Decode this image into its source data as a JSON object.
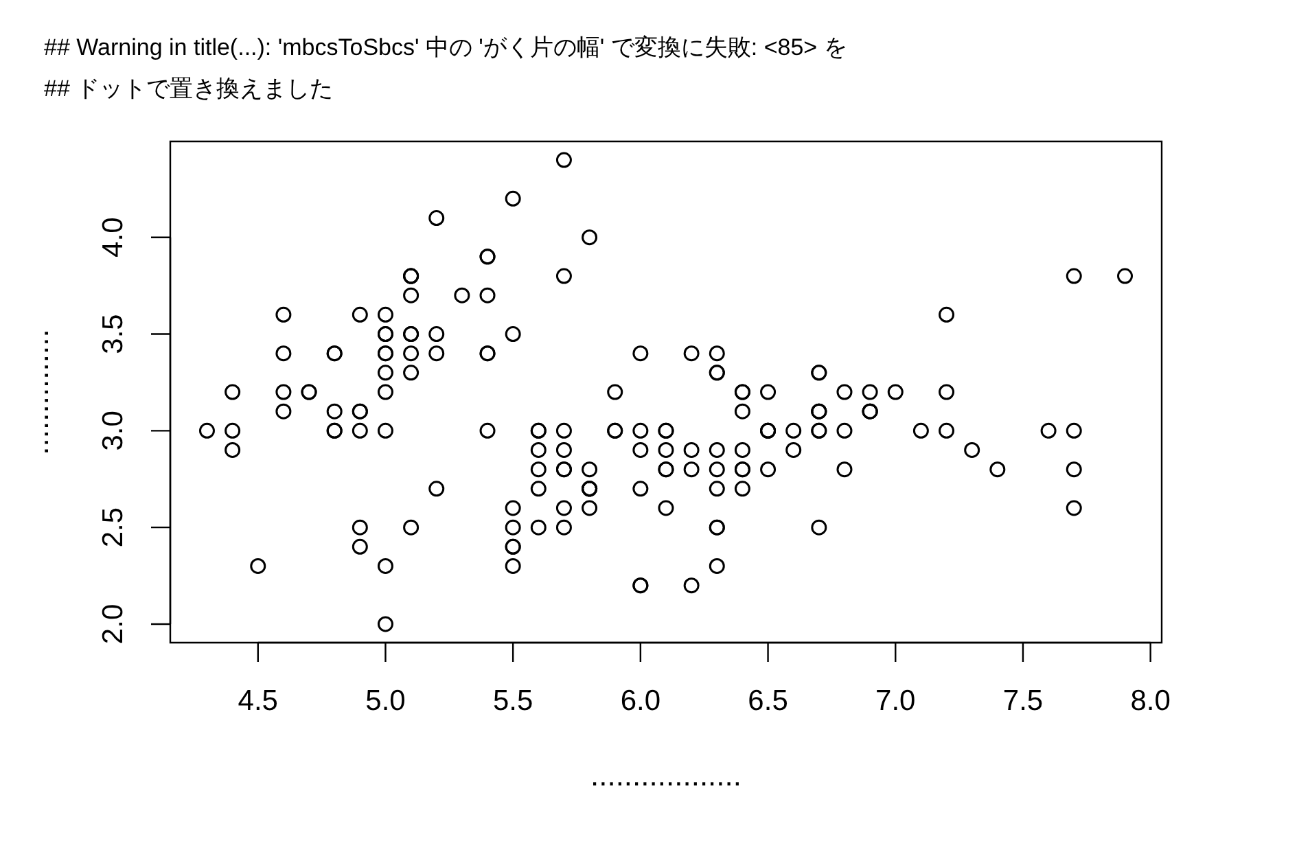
{
  "chart_data": {
    "type": "scatter",
    "annotations": [
      "## Warning in title(...): 'mbcsToSbcs' 中の 'がく片の幅' で変換に失敗: <85> を",
      "## ドットで置き換えました"
    ],
    "xlabel": "..................",
    "ylabel": "...............",
    "x": [
      5.1,
      4.9,
      4.7,
      4.6,
      5.0,
      5.4,
      4.6,
      5.0,
      4.4,
      4.9,
      5.4,
      4.8,
      4.8,
      4.3,
      5.8,
      5.7,
      5.4,
      5.1,
      5.7,
      5.1,
      5.4,
      5.1,
      4.6,
      5.1,
      4.8,
      5.0,
      5.0,
      5.2,
      5.2,
      4.7,
      4.8,
      5.4,
      5.2,
      5.5,
      4.9,
      5.0,
      5.5,
      4.9,
      4.4,
      5.1,
      5.0,
      4.5,
      4.4,
      5.0,
      5.1,
      4.8,
      5.1,
      4.6,
      5.3,
      5.0,
      7.0,
      6.4,
      6.9,
      5.5,
      6.5,
      5.7,
      6.3,
      4.9,
      6.6,
      5.2,
      5.0,
      5.9,
      6.0,
      6.1,
      5.6,
      6.7,
      5.6,
      5.8,
      6.2,
      5.6,
      5.9,
      6.1,
      6.3,
      6.1,
      6.4,
      6.6,
      6.8,
      6.7,
      6.0,
      5.7,
      5.5,
      5.5,
      5.8,
      6.0,
      5.4,
      6.0,
      6.7,
      6.3,
      5.6,
      5.5,
      5.5,
      6.1,
      5.8,
      5.0,
      5.6,
      5.7,
      5.7,
      6.2,
      5.1,
      5.7,
      6.3,
      5.8,
      7.1,
      6.3,
      6.5,
      7.6,
      4.9,
      7.3,
      6.7,
      7.2,
      6.5,
      6.4,
      6.8,
      5.7,
      5.8,
      6.4,
      6.5,
      7.7,
      7.7,
      6.0,
      6.9,
      5.6,
      7.7,
      6.3,
      6.7,
      7.2,
      6.2,
      6.1,
      6.4,
      7.2,
      7.4,
      7.9,
      6.4,
      6.3,
      6.1,
      7.7,
      6.3,
      6.4,
      6.0,
      6.9,
      6.7,
      6.9,
      5.8,
      6.8,
      6.7,
      6.7,
      6.3,
      6.5,
      6.2,
      5.9
    ],
    "values": [
      3.5,
      3.0,
      3.2,
      3.1,
      3.6,
      3.9,
      3.4,
      3.4,
      2.9,
      3.1,
      3.7,
      3.4,
      3.0,
      3.0,
      4.0,
      4.4,
      3.9,
      3.5,
      3.8,
      3.8,
      3.4,
      3.7,
      3.6,
      3.3,
      3.4,
      3.0,
      3.4,
      3.5,
      3.4,
      3.2,
      3.1,
      3.4,
      4.1,
      4.2,
      3.1,
      3.2,
      3.5,
      3.6,
      3.0,
      3.4,
      3.5,
      2.3,
      3.2,
      3.5,
      3.8,
      3.0,
      3.8,
      3.2,
      3.7,
      3.3,
      3.2,
      3.2,
      3.1,
      2.3,
      2.8,
      2.8,
      3.3,
      2.4,
      2.9,
      2.7,
      2.0,
      3.0,
      2.2,
      2.9,
      2.9,
      3.1,
      3.0,
      2.7,
      2.2,
      2.5,
      3.2,
      2.8,
      2.5,
      2.8,
      2.9,
      3.0,
      2.8,
      3.0,
      2.9,
      2.6,
      2.4,
      2.4,
      2.7,
      2.7,
      3.0,
      3.4,
      3.1,
      2.3,
      3.0,
      2.5,
      2.6,
      3.0,
      2.6,
      2.3,
      2.7,
      3.0,
      2.9,
      2.9,
      2.5,
      2.8,
      3.3,
      2.7,
      3.0,
      2.9,
      3.0,
      3.0,
      2.5,
      2.9,
      2.5,
      3.6,
      3.2,
      2.7,
      3.0,
      2.5,
      2.8,
      3.2,
      3.0,
      3.8,
      2.6,
      2.2,
      3.2,
      2.8,
      2.8,
      2.7,
      3.3,
      3.2,
      2.8,
      3.0,
      2.8,
      3.0,
      2.8,
      3.8,
      2.8,
      2.8,
      2.6,
      3.0,
      3.4,
      3.1,
      3.0,
      3.1,
      3.1,
      3.1,
      2.7,
      3.2,
      3.3,
      3.0,
      2.5,
      3.0,
      3.4,
      3.0
    ],
    "color": "#000000",
    "marker": "circle",
    "xlim": [
      4.156,
      8.044
    ],
    "ylim": [
      1.904,
      4.496
    ],
    "xticks": [
      4.5,
      {
        "value": 5,
        "label": "5.0"
      },
      5.5,
      {
        "value": 6,
        "label": "6.0"
      },
      6.5,
      {
        "value": 7,
        "label": "7.0"
      },
      7.5,
      {
        "value": 8,
        "label": "8.0"
      }
    ],
    "yticks": [
      {
        "value": 2,
        "label": "2.0"
      },
      2.5,
      {
        "value": 3,
        "label": "3.0"
      },
      3.5,
      {
        "value": 4,
        "label": "4.0"
      }
    ]
  }
}
